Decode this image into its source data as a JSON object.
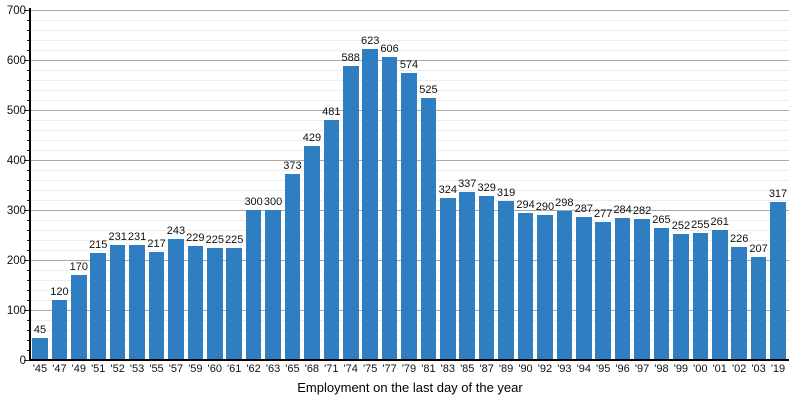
{
  "chart_data": {
    "type": "bar",
    "title": "",
    "xlabel": "Employment on the last day of the year",
    "ylabel": "",
    "categories": [
      "'45",
      "'47",
      "'49",
      "'51",
      "'52",
      "'53",
      "'55",
      "'57",
      "'59",
      "'60",
      "'61",
      "'62",
      "'63",
      "'65",
      "'68",
      "'71",
      "'74",
      "'75",
      "'77",
      "'79",
      "'81",
      "'83",
      "'85",
      "'87",
      "'89",
      "'90",
      "'92",
      "'93",
      "'94",
      "'95",
      "'96",
      "'97",
      "'98",
      "'99",
      "'00",
      "'01",
      "'02",
      "'03",
      "'19"
    ],
    "values": [
      45,
      120,
      170,
      215,
      231,
      231,
      217,
      243,
      229,
      225,
      225,
      300,
      300,
      373,
      429,
      481,
      588,
      623,
      606,
      574,
      525,
      324,
      337,
      329,
      319,
      294,
      290,
      298,
      287,
      277,
      284,
      282,
      265,
      252,
      255,
      261,
      226,
      207,
      317
    ],
    "data_labels_shown": true,
    "ylim": [
      0,
      700
    ],
    "ytick_major_step": 100,
    "ytick_minor_step": 20,
    "ytick_labels": [
      "0",
      "100",
      "200",
      "300",
      "400",
      "500",
      "600",
      "700"
    ],
    "grid": "on",
    "legend": "none",
    "colors": {
      "bar": "#2f7ec2",
      "major_grid": "#a8a8a8",
      "minor_grid": "#ededed",
      "axis": "#000000",
      "text": "#111111"
    }
  }
}
